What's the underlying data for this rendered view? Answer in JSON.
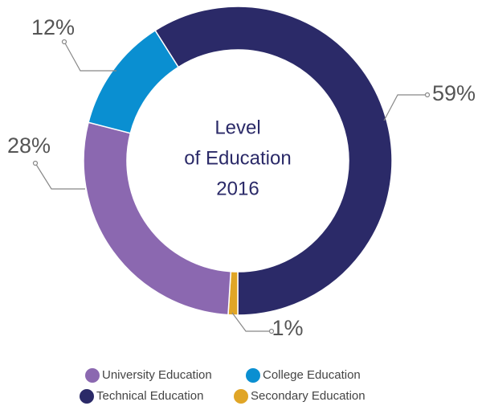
{
  "chart_data": {
    "type": "donut",
    "title": [
      "Level",
      "of Education",
      "2016"
    ],
    "categories": [
      "University Education",
      "College Education",
      "Technical Education",
      "Secondary Education"
    ],
    "values": [
      28,
      12,
      59,
      1
    ],
    "value_labels": [
      "28%",
      "12%",
      "59%",
      "1%"
    ],
    "colors": [
      "#8b68b0",
      "#0a8fd1",
      "#2b2a68",
      "#e0a526"
    ],
    "legend": "bottom"
  }
}
